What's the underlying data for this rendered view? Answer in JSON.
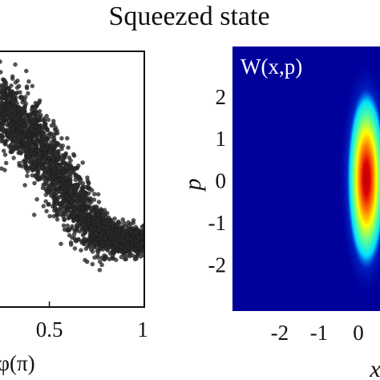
{
  "figure": {
    "title": "Squeezed state"
  },
  "chart_data": [
    {
      "type": "scatter",
      "xlabel": "φ(π)",
      "ylabel": "",
      "xlim": [
        0.24,
        1.0
      ],
      "ylim": [
        0.0,
        1.0
      ],
      "xticks": [
        {
          "value": 0.5,
          "label": "0.5"
        },
        {
          "value": 1.0,
          "label": "1"
        }
      ],
      "grid": false,
      "legend": "none",
      "point_color": "#2a2a2a",
      "trend": {
        "x": [
          0.24,
          0.3,
          0.36,
          0.42,
          0.48,
          0.54,
          0.6,
          0.66,
          0.72,
          0.78,
          0.84,
          0.9,
          0.96,
          1.0
        ],
        "y_center": [
          0.78,
          0.74,
          0.69,
          0.64,
          0.58,
          0.51,
          0.45,
          0.38,
          0.33,
          0.29,
          0.27,
          0.26,
          0.26,
          0.26
        ],
        "y_spread": [
          0.12,
          0.13,
          0.14,
          0.15,
          0.15,
          0.15,
          0.14,
          0.12,
          0.1,
          0.08,
          0.06,
          0.05,
          0.05,
          0.05
        ]
      },
      "point_count": 2600
    },
    {
      "type": "heatmap",
      "label": "W(x,p)",
      "xlabel": "x",
      "ylabel": "p",
      "xlim": [
        -3.2,
        0.55
      ],
      "ylim": [
        -3.1,
        3.2
      ],
      "xticks": [
        {
          "value": -2,
          "label": "-2"
        },
        {
          "value": -1,
          "label": "-1"
        },
        {
          "value": 0,
          "label": "0"
        }
      ],
      "yticks": [
        {
          "value": 2,
          "label": "2"
        },
        {
          "value": 1,
          "label": "1"
        },
        {
          "value": 0,
          "label": "0"
        },
        {
          "value": -1,
          "label": "-1"
        },
        {
          "value": -2,
          "label": "-2"
        }
      ],
      "peak": {
        "x": 0.0,
        "p": 0.0
      },
      "width_x": 0.22,
      "width_p": 1.35,
      "colormap": [
        "#00008f",
        "#0000ff",
        "#00ffff",
        "#ffff00",
        "#ff0000",
        "#800000"
      ]
    }
  ]
}
